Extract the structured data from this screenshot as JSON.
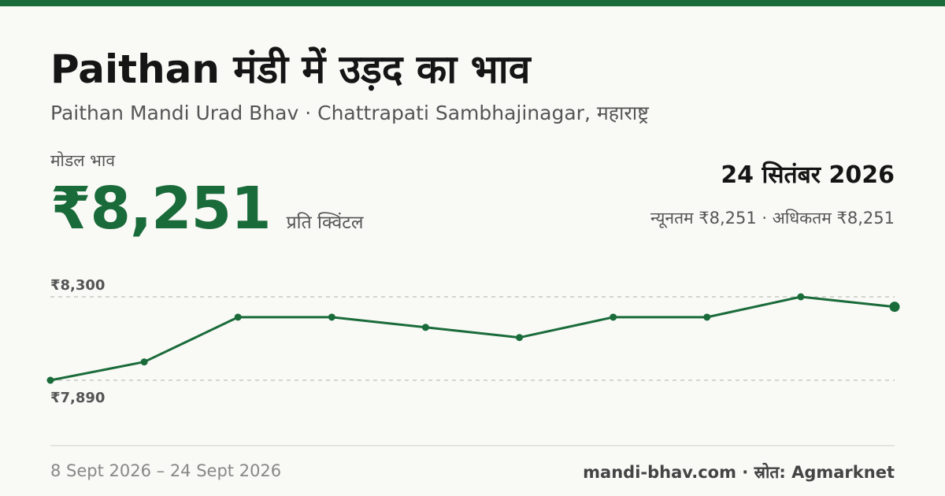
{
  "header": {
    "title": "Paithan मंडी में उड़द का भाव",
    "subtitle": "Paithan Mandi Urad Bhav · Chattrapati Sambhajinagar, महाराष्ट्र"
  },
  "price": {
    "label": "मोडल भाव",
    "value": "₹8,251",
    "unit": "प्रति क्विंटल"
  },
  "summary": {
    "date": "24 सितंबर 2026",
    "minmax": "न्यूनतम ₹8,251 · अधिकतम ₹8,251"
  },
  "footer": {
    "range": "8 Sept 2026 – 24 Sept 2026",
    "source": "mandi-bhav.com · स्रोत: Agmarknet"
  },
  "colors": {
    "accent": "#1a6b3a",
    "gridline": "#c8c8c2",
    "background": "#f9f9f6"
  },
  "chart_data": {
    "type": "line",
    "title": "",
    "xlabel": "",
    "ylabel": "",
    "x": [
      "8 Sept 2026",
      "",
      "",
      "",
      "",
      "",
      "",
      "",
      "",
      "24 Sept 2026"
    ],
    "values": [
      7890,
      7980,
      8200,
      8200,
      8150,
      8100,
      8200,
      8200,
      8300,
      8251
    ],
    "ylim": [
      7890,
      8300
    ],
    "ytick_labels": [
      "₹8,300",
      "₹7,890"
    ],
    "grid": "dashed horizontal lines at min and max",
    "legend": "none"
  }
}
